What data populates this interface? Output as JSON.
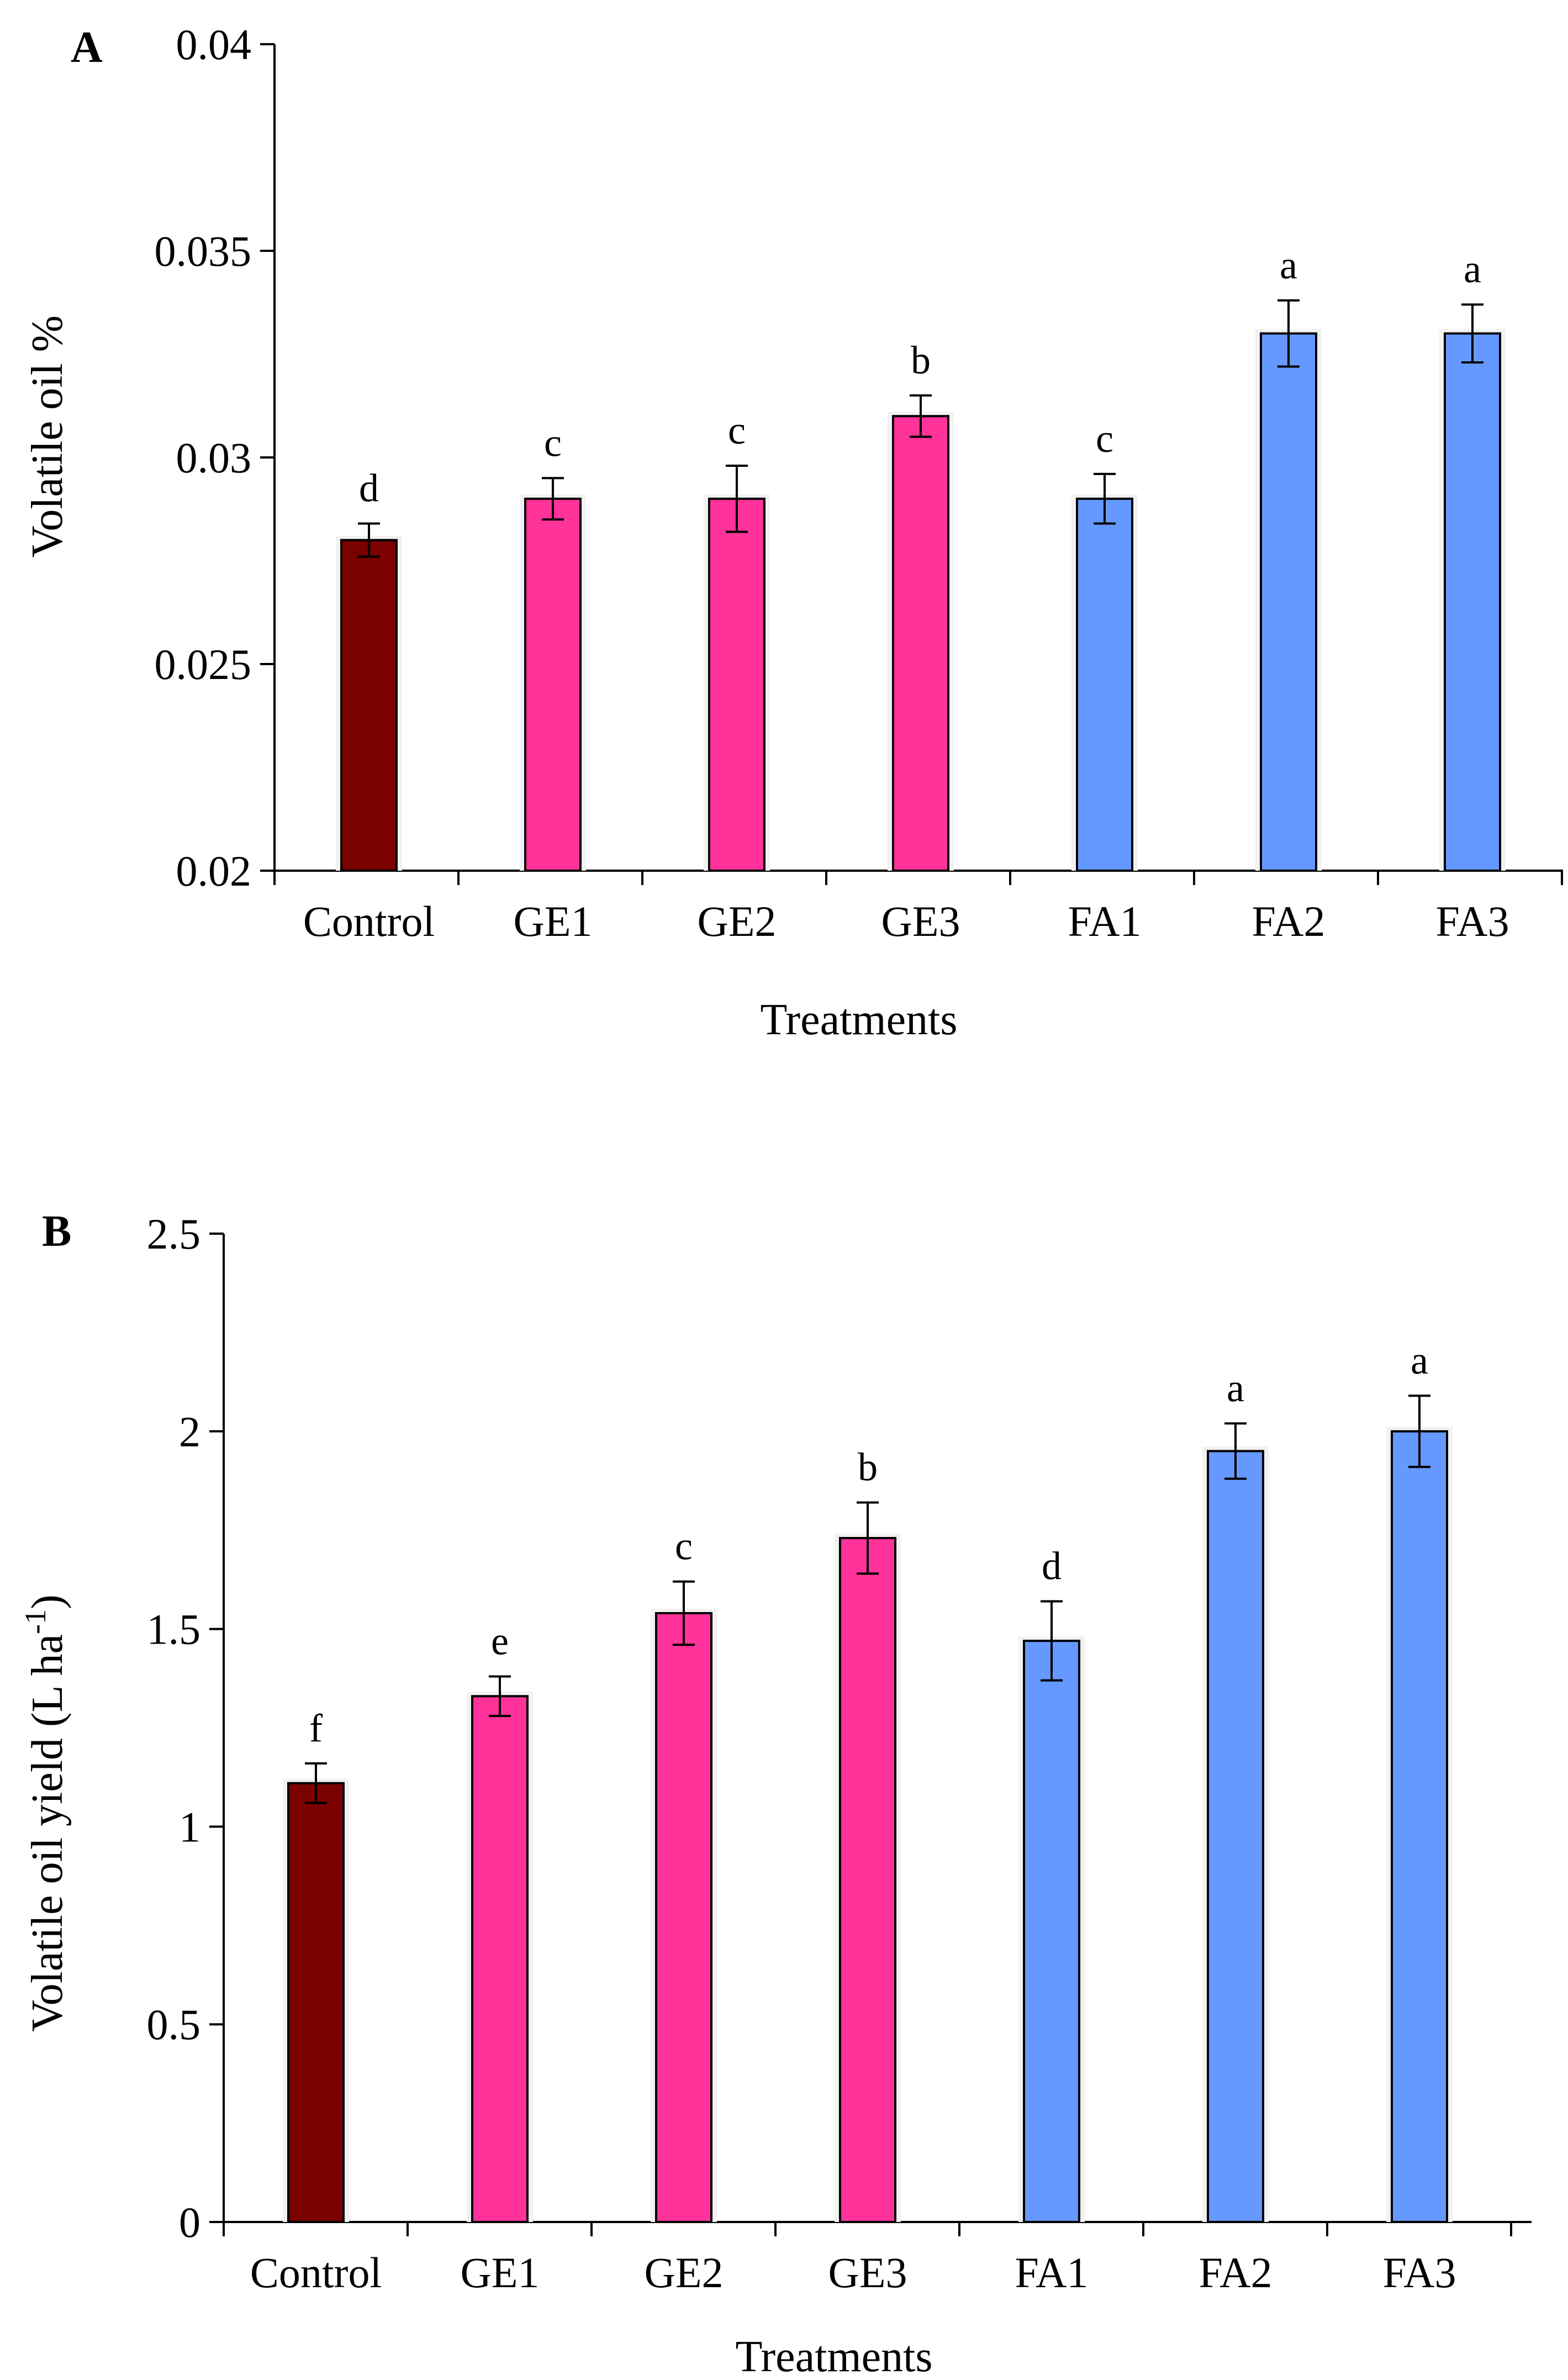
{
  "charts": [
    {
      "panel_label": "A",
      "chart_data": {
        "type": "bar",
        "categories": [
          "Control",
          "GE1",
          "GE2",
          "GE3",
          "FA1",
          "FA2",
          "FA3"
        ],
        "values": [
          0.028,
          0.029,
          0.029,
          0.031,
          0.029,
          0.033,
          0.033
        ],
        "errors": [
          0.0004,
          0.0005,
          0.0008,
          0.0005,
          0.0006,
          0.0008,
          0.0007
        ],
        "significance": [
          "d",
          "c",
          "c",
          "b",
          "c",
          "a",
          "a"
        ],
        "colors": [
          "#7b0000",
          "#ff3399",
          "#ff3399",
          "#ff3399",
          "#6699ff",
          "#6699ff",
          "#6699ff"
        ],
        "title": "",
        "xlabel": "Treatments",
        "ylabel": "Volatile oil %",
        "ylim": [
          0.02,
          0.04
        ],
        "yticks": [
          0.02,
          0.025,
          0.03,
          0.035,
          0.04
        ],
        "ytick_labels": [
          "0.02",
          "0.025",
          "0.03",
          "0.035",
          "0.04"
        ],
        "grid": false
      }
    },
    {
      "panel_label": "B",
      "chart_data": {
        "type": "bar",
        "categories": [
          "Control",
          "GE1",
          "GE2",
          "GE3",
          "FA1",
          "FA2",
          "FA3"
        ],
        "values": [
          1.11,
          1.33,
          1.54,
          1.73,
          1.47,
          1.95,
          2.0
        ],
        "errors": [
          0.05,
          0.05,
          0.08,
          0.09,
          0.1,
          0.07,
          0.09
        ],
        "significance": [
          "f",
          "e",
          "c",
          "b",
          "d",
          "a",
          "a"
        ],
        "colors": [
          "#7b0000",
          "#ff3399",
          "#ff3399",
          "#ff3399",
          "#6699ff",
          "#6699ff",
          "#6699ff"
        ],
        "title": "",
        "xlabel": "Treatments",
        "ylabel": "Volatile oil yield (L ha",
        "ylabel_superscript": "-1",
        "ylabel_suffix": ")",
        "ylim": [
          0,
          2.5
        ],
        "yticks": [
          0,
          0.5,
          1,
          1.5,
          2,
          2.5
        ],
        "ytick_labels": [
          "0",
          "0.5",
          "1",
          "1.5",
          "2",
          "2.5"
        ],
        "grid": false
      }
    }
  ]
}
